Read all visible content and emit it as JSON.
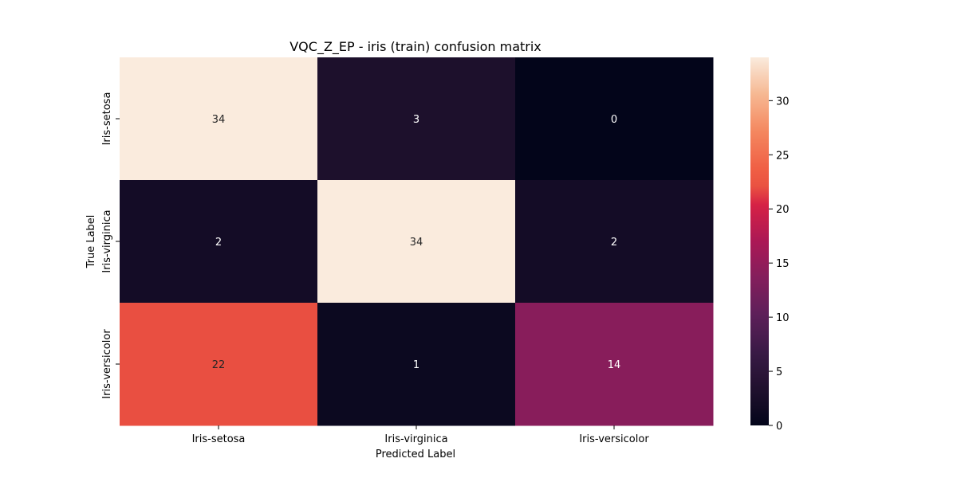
{
  "chart_data": {
    "type": "heatmap",
    "title": "VQC_Z_EP - iris (train) confusion matrix",
    "xlabel": "Predicted Label",
    "ylabel": "True Label",
    "x_categories": [
      "Iris-setosa",
      "Iris-virginica",
      "Iris-versicolor"
    ],
    "y_categories": [
      "Iris-setosa",
      "Iris-virginica",
      "Iris-versicolor"
    ],
    "values": [
      [
        34,
        3,
        0
      ],
      [
        2,
        34,
        2
      ],
      [
        22,
        1,
        14
      ]
    ],
    "colorbar": {
      "min": 0,
      "max": 34,
      "ticks": [
        0,
        5,
        10,
        15,
        20,
        25,
        30
      ],
      "colormap": "rocket"
    }
  }
}
